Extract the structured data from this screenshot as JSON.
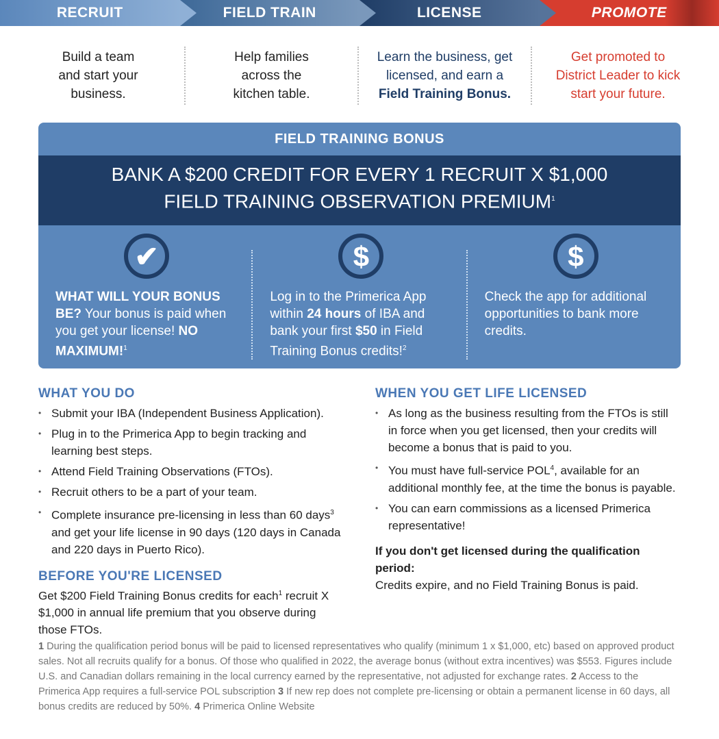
{
  "banner": [
    "RECRUIT",
    "FIELD TRAIN",
    "LICENSE",
    "PROMOTE"
  ],
  "steps": [
    {
      "text": "Build a team and start your business."
    },
    {
      "text": "Help families across the kitchen table."
    },
    {
      "text": "Learn the business, get licensed, and earn a",
      "bold": "Field Training Bonus."
    },
    {
      "text": "Get promoted to District Leader to kick start your future."
    }
  ],
  "bonus": {
    "title": "FIELD TRAINING BONUS",
    "headline1": "BANK A $200 CREDIT FOR EVERY 1 RECRUIT X $1,000",
    "headline2": "FIELD TRAINING OBSERVATION PREMIUM",
    "headline_sup": "1",
    "col1": {
      "bold": "WHAT WILL YOUR BONUS BE?",
      "text": " Your bonus is paid when you get your license! ",
      "bold2": "NO MAXIMUM!",
      "sup": "1"
    },
    "col2": {
      "t1": "Log in to the Primerica App within ",
      "b1": "24 hours",
      "t2": " of IBA and bank your first ",
      "b2": "$50",
      "t3": " in Field Training Bonus credits!",
      "sup": "2"
    },
    "col3": {
      "text": "Check the app for additional opportunities to bank more credits."
    },
    "icons": [
      "check-icon",
      "dollar-icon",
      "dollar-icon"
    ]
  },
  "what_you_do": {
    "heading": "WHAT YOU DO",
    "items": [
      "Submit your IBA (Independent Business Application).",
      "Plug in to the Primerica App to begin tracking and learning best steps.",
      "Attend Field Training Observations (FTOs).",
      "Recruit others to be a part of your team."
    ],
    "item5a": "Complete insurance pre-licensing in less than 60 days",
    "item5sup": "3",
    "item5b": " and get your life license in 90 days (120 days in Canada and 220 days in Puerto Rico)."
  },
  "before": {
    "heading": "BEFORE YOU'RE LICENSED",
    "t1": "Get $200 Field Training Bonus credits for each",
    "sup": "1",
    "t2": " recruit X $1,000 in annual life premium that you observe during those FTOs."
  },
  "when": {
    "heading": "WHEN YOU GET LIFE LICENSED",
    "item1": "As long as the business resulting from the FTOs is still in force when you get licensed, then your credits will become a bonus that is paid to you.",
    "item2a": "You must have full-service POL",
    "item2sup": "4",
    "item2b": ", available for an additional monthly fee, at the time the bonus is payable.",
    "item3": "You can earn commissions as a licensed Primerica representative!",
    "if_bold": "If you don't get licensed during the qualification period:",
    "if_text": "Credits expire, and no Field Training Bonus is paid."
  },
  "footnotes": {
    "n1": "1",
    "t1": " During the qualification period bonus will be paid to licensed representatives who qualify (minimum 1 x $1,000, etc) based on approved product sales. Not all recruits qualify for a bonus. Of those who qualified in 2022, the average bonus (without extra incentives) was $553. Figures include U.S. and Canadian dollars remaining in the local currency earned by the representative, not adjusted for exchange rates. ",
    "n2": "2",
    "t2": " Access to the Primerica App requires a full-service POL subscription ",
    "n3": "3",
    "t3": " If new rep does not complete pre-licensing or obtain a permanent license in 60 days, all bonus credits are reduced by 50%. ",
    "n4": "4",
    "t4": " Primerica Online Website"
  },
  "colors": {
    "light_blue": "#5b87bb",
    "navy": "#1f3d66",
    "red": "#d63d2f",
    "heading": "#4a78b5"
  }
}
